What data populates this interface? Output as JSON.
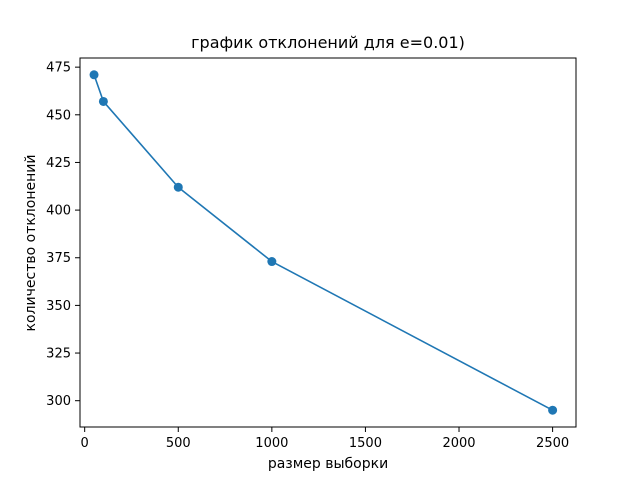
{
  "chart_data": {
    "type": "line",
    "title": "график отклонений для e=0.01)",
    "xlabel": "размер выборки",
    "ylabel": "количество отклонений",
    "x": [
      50,
      100,
      500,
      1000,
      2500
    ],
    "series": [
      {
        "values": [
          471,
          457,
          412,
          373,
          295
        ],
        "color": "#1f77b4"
      }
    ],
    "xlim": [
      -25,
      2625
    ],
    "ylim": [
      286.2,
      479.8
    ],
    "xticks": [
      0,
      500,
      1000,
      1500,
      2000,
      2500
    ],
    "yticks": [
      300,
      325,
      350,
      375,
      400,
      425,
      450,
      475
    ],
    "markers": "circle",
    "grid": false,
    "legend": "none"
  }
}
